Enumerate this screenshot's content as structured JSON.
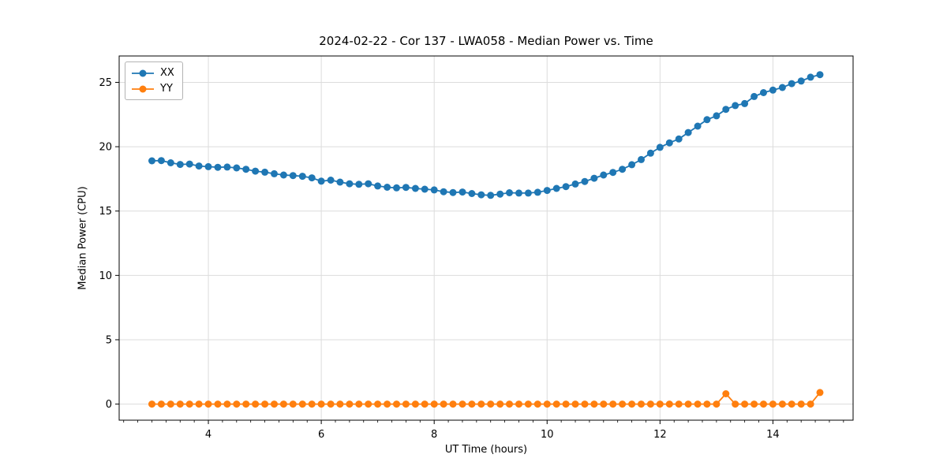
{
  "chart_data": {
    "type": "line",
    "title": "2024-02-22 - Cor 137 - LWA058 - Median Power vs. Time",
    "xlabel": "UT Time (hours)",
    "ylabel": "Median Power (CPU)",
    "xlim": [
      2.42,
      15.42
    ],
    "ylim": [
      -1.25,
      27.05
    ],
    "x_major_ticks": [
      4,
      6,
      8,
      10,
      12,
      14
    ],
    "x_minor_tick_step": 0.25,
    "y_major_ticks": [
      0,
      5,
      10,
      15,
      20,
      25
    ],
    "grid": true,
    "grid_color": "#dcdcdc",
    "legend_position": "upper-left",
    "x": [
      3.0,
      3.167,
      3.333,
      3.5,
      3.667,
      3.833,
      4.0,
      4.167,
      4.333,
      4.5,
      4.667,
      4.833,
      5.0,
      5.167,
      5.333,
      5.5,
      5.667,
      5.833,
      6.0,
      6.167,
      6.333,
      6.5,
      6.667,
      6.833,
      7.0,
      7.167,
      7.333,
      7.5,
      7.667,
      7.833,
      8.0,
      8.167,
      8.333,
      8.5,
      8.667,
      8.833,
      9.0,
      9.167,
      9.333,
      9.5,
      9.667,
      9.833,
      10.0,
      10.167,
      10.333,
      10.5,
      10.667,
      10.833,
      11.0,
      11.167,
      11.333,
      11.5,
      11.667,
      11.833,
      12.0,
      12.167,
      12.333,
      12.5,
      12.667,
      12.833,
      13.0,
      13.167,
      13.333,
      13.5,
      13.667,
      13.833,
      14.0,
      14.167,
      14.333,
      14.5,
      14.667,
      14.833
    ],
    "series": [
      {
        "name": "XX",
        "color": "#1f77b4",
        "marker": "circle",
        "values": [
          18.9,
          18.92,
          18.75,
          18.62,
          18.65,
          18.5,
          18.45,
          18.4,
          18.42,
          18.35,
          18.25,
          18.1,
          18.02,
          17.9,
          17.8,
          17.76,
          17.7,
          17.58,
          17.32,
          17.4,
          17.25,
          17.12,
          17.08,
          17.12,
          16.95,
          16.85,
          16.8,
          16.84,
          16.76,
          16.7,
          16.64,
          16.5,
          16.44,
          16.48,
          16.36,
          16.26,
          16.22,
          16.32,
          16.42,
          16.4,
          16.4,
          16.46,
          16.6,
          16.76,
          16.9,
          17.1,
          17.3,
          17.55,
          17.8,
          18.0,
          18.25,
          18.6,
          19.0,
          19.5,
          19.95,
          20.3,
          20.6,
          21.1,
          21.6,
          22.1,
          22.4,
          22.9,
          23.2,
          23.35,
          23.9,
          24.2,
          24.4,
          24.6,
          24.9,
          25.1,
          25.4,
          25.6
        ]
      },
      {
        "name": "YY",
        "color": "#ff7f0e",
        "marker": "circle",
        "values": [
          0,
          0,
          0,
          0,
          0,
          0,
          0,
          0,
          0,
          0,
          0,
          0,
          0,
          0,
          0,
          0,
          0,
          0,
          0,
          0,
          0,
          0,
          0,
          0,
          0,
          0,
          0,
          0,
          0,
          0,
          0,
          0,
          0,
          0,
          0,
          0,
          0,
          0,
          0,
          0,
          0,
          0,
          0,
          0,
          0,
          0,
          0,
          0,
          0,
          0,
          0,
          0,
          0,
          0,
          0,
          0,
          0,
          0,
          0,
          0,
          0,
          0.8,
          0,
          0,
          0,
          0,
          0,
          0,
          0,
          0,
          0,
          0.9
        ]
      }
    ]
  }
}
